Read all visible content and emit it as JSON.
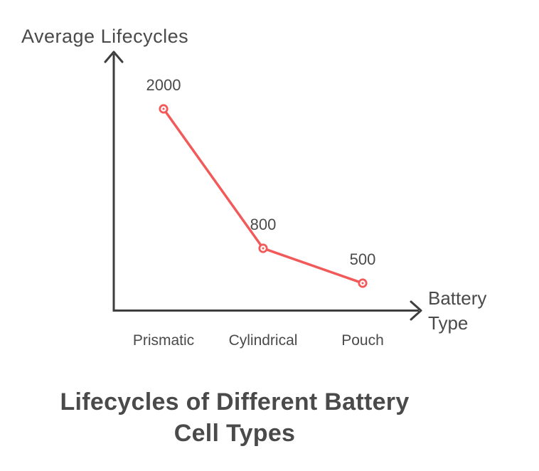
{
  "chart_data": {
    "type": "line",
    "title": "Lifecycles of Different Battery Cell Types",
    "title_lines": [
      "Lifecycles of Different Battery",
      "Cell Types"
    ],
    "ylabel": "Average Lifecycles",
    "xlabel": "Battery Type",
    "xlabel_lines": [
      "Battery",
      "Type"
    ],
    "categories": [
      "Prismatic",
      "Cylindrical",
      "Pouch"
    ],
    "values": [
      2000,
      800,
      500
    ],
    "point_labels": [
      "2000",
      "800",
      "500"
    ],
    "value_range": [
      500,
      2000
    ],
    "grid": false,
    "legend": false,
    "colors": {
      "line": "#f25a5a",
      "marker_fill": "#ffffff",
      "axis": "#3e3e3e",
      "text": "#4a4a4a"
    }
  }
}
